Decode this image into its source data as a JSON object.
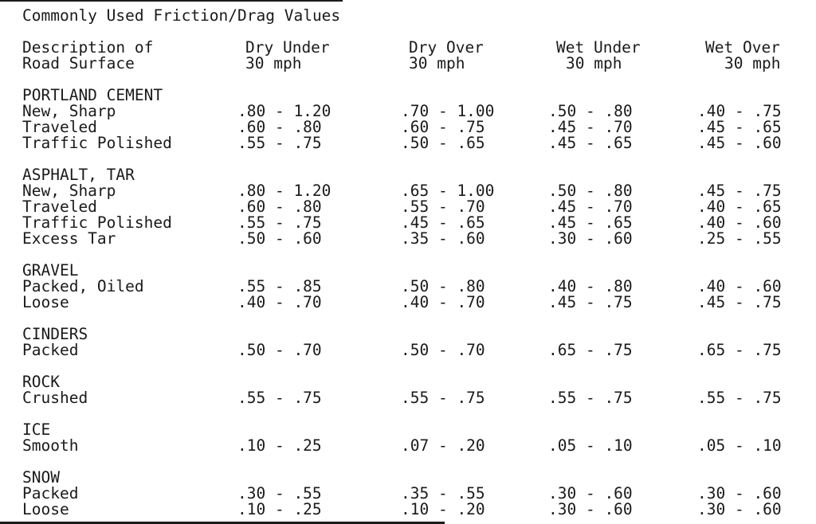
{
  "title": "Commonly Used Friction/Drag Values",
  "colors": {
    "text": "#1a1a1a",
    "background": "#ffffff"
  },
  "table": {
    "columns": [
      {
        "line1": "Description of",
        "line2": "Road Surface"
      },
      {
        "line1": "Dry Under",
        "line2": "30 mph"
      },
      {
        "line1": "Dry Over",
        "line2": "30 mph"
      },
      {
        "line1": "Wet Under",
        "line2": "30 mph"
      },
      {
        "line1": "Wet Over",
        "line2": "30 mph"
      }
    ],
    "sections": [
      {
        "name": "PORTLAND CEMENT",
        "rows": [
          {
            "label": "New, Sharp",
            "values": [
              ".80 - 1.20",
              ".70 - 1.00",
              ".50 - .80",
              ".40 - .75"
            ]
          },
          {
            "label": "Traveled",
            "values": [
              ".60 - .80",
              ".60 - .75",
              ".45 - .70",
              ".45 - .65"
            ]
          },
          {
            "label": "Traffic Polished",
            "values": [
              ".55 - .75",
              ".50 - .65",
              ".45 - .65",
              ".45 - .60"
            ]
          }
        ]
      },
      {
        "name": "ASPHALT, TAR",
        "rows": [
          {
            "label": "New, Sharp",
            "values": [
              ".80 - 1.20",
              ".65 - 1.00",
              ".50 - .80",
              ".45 - .75"
            ]
          },
          {
            "label": "Traveled",
            "values": [
              ".60 - .80",
              ".55 - .70",
              ".45 - .70",
              ".40 - .65"
            ]
          },
          {
            "label": "Traffic Polished",
            "values": [
              ".55 - .75",
              ".45 - .65",
              ".45 - .65",
              ".40 - .60"
            ]
          },
          {
            "label": "Excess Tar",
            "values": [
              ".50 - .60",
              ".35 - .60",
              ".30 - .60",
              ".25 - .55"
            ]
          }
        ]
      },
      {
        "name": "GRAVEL",
        "rows": [
          {
            "label": "Packed, Oiled",
            "values": [
              ".55 - .85",
              ".50 - .80",
              ".40 - .80",
              ".40 - .60"
            ]
          },
          {
            "label": "Loose",
            "values": [
              ".40 - .70",
              ".40 - .70",
              ".45 - .75",
              ".45 - .75"
            ]
          }
        ]
      },
      {
        "name": "CINDERS",
        "rows": [
          {
            "label": "Packed",
            "values": [
              ".50 - .70",
              ".50 - .70",
              ".65 - .75",
              ".65 - .75"
            ]
          }
        ]
      },
      {
        "name": "ROCK",
        "rows": [
          {
            "label": "Crushed",
            "values": [
              ".55 - .75",
              ".55 - .75",
              ".55 - .75",
              ".55 - .75"
            ]
          }
        ]
      },
      {
        "name": "ICE",
        "rows": [
          {
            "label": "Smooth",
            "values": [
              ".10 - .25",
              ".07 - .20",
              ".05 - .10",
              ".05 - .10"
            ]
          }
        ]
      },
      {
        "name": "SNOW",
        "rows": [
          {
            "label": "Packed",
            "values": [
              ".30 - .55",
              ".35 - .55",
              ".30 - .60",
              ".30 - .60"
            ]
          },
          {
            "label": "Loose",
            "values": [
              ".10 - .25",
              ".10 - .20",
              ".30 - .60",
              ".30 - .60"
            ]
          }
        ]
      }
    ]
  }
}
